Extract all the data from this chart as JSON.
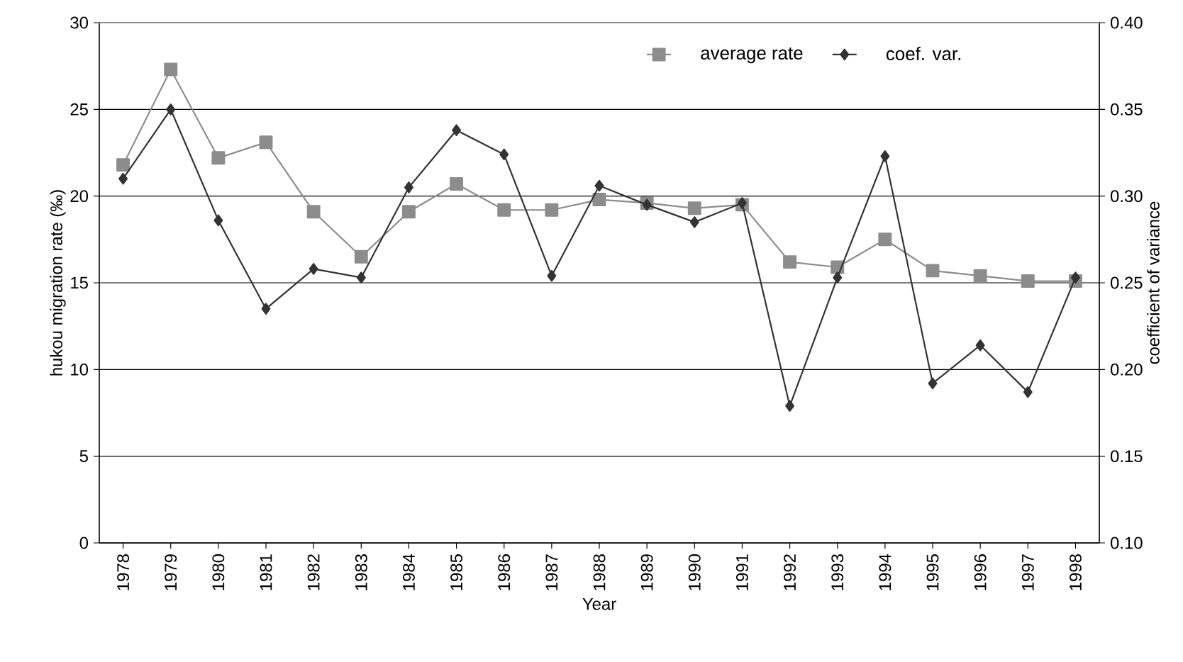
{
  "chart_data": {
    "type": "line",
    "xlabel": "Year",
    "ylabel": "hukou  migration rate (‰)",
    "y2label": "coefficient of variance",
    "categories": [
      "1978",
      "1979",
      "1980",
      "1981",
      "1982",
      "1983",
      "1984",
      "1985",
      "1986",
      "1987",
      "1988",
      "1989",
      "1990",
      "1991",
      "1992",
      "1993",
      "1994",
      "1995",
      "1996",
      "1997",
      "1998"
    ],
    "series": [
      {
        "name": "average rate",
        "color": "#8c8c8c",
        "marker": "square",
        "values": [
          21.8,
          27.3,
          22.2,
          23.1,
          19.1,
          16.5,
          19.1,
          20.7,
          19.2,
          19.2,
          19.8,
          19.6,
          19.3,
          19.5,
          16.2,
          15.9,
          17.5,
          15.7,
          15.4,
          15.1,
          15.1
        ]
      },
      {
        "name": "coef. var.",
        "color": "#333333",
        "marker": "diamond",
        "axis": "y2",
        "values": [
          0.31,
          0.35,
          0.286,
          0.235,
          0.258,
          0.253,
          0.305,
          0.338,
          0.324,
          0.254,
          0.306,
          0.295,
          0.285,
          0.296,
          0.179,
          0.253,
          0.323,
          0.192,
          0.214,
          0.187,
          0.253
        ]
      }
    ],
    "ylim": [
      0,
      30
    ],
    "yticks": [
      0,
      5,
      10,
      15,
      20,
      25,
      30
    ],
    "y2lim": [
      0.1,
      0.4
    ],
    "y2ticks": [
      {
        "value": 0.1,
        "label": "0.10"
      },
      {
        "value": 0.15,
        "label": "0.15"
      },
      {
        "value": 0.2,
        "label": "0.20"
      },
      {
        "value": 0.25,
        "label": "0.25"
      },
      {
        "value": 0.3,
        "label": "0.30"
      },
      {
        "value": 0.35,
        "label": "0.35"
      },
      {
        "value": 0.4,
        "label": "0.40"
      }
    ],
    "grid": "y",
    "legend": "top right"
  }
}
